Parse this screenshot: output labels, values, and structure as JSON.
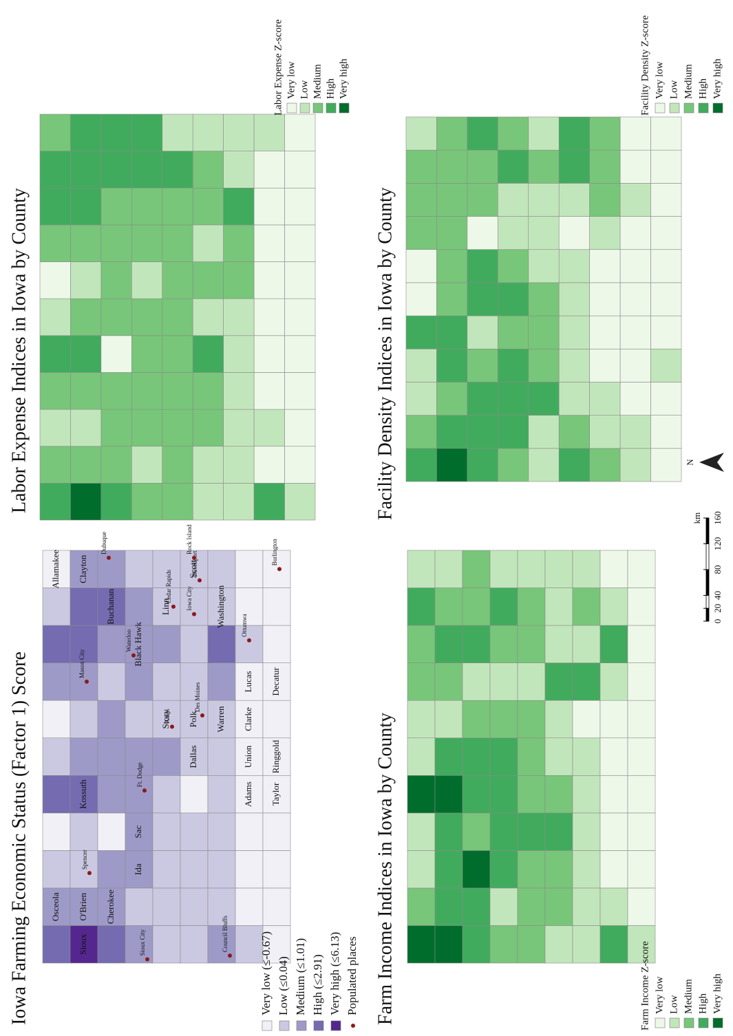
{
  "panels": [
    {
      "title": "Iowa Farming Economic Status (Factor 1) Score",
      "legend": [
        "Very low (≤-0.67)",
        "Low (≤0.04)",
        "Medium (≤1.01)",
        "High (≤2.91)",
        "Very high (≤6.13)"
      ],
      "places_legend": "Populated places",
      "palette": [
        "#f2f0f7",
        "#cbc9e2",
        "#9e9ac8",
        "#756bb1",
        "#54278f"
      ],
      "county_labels": [
        "Osceola",
        "O'Brien",
        "Sioux",
        "Cherokee",
        "Ida",
        "Sac",
        "Kossuth",
        "Allamakee",
        "Clayton",
        "Buchanan",
        "Black Hawk",
        "Linn",
        "Scott",
        "Washington",
        "Story",
        "Polk",
        "Dallas",
        "Warren",
        "Clarke",
        "Lucas",
        "Decatur",
        "Union",
        "Ringgold",
        "Adams",
        "Taylor"
      ],
      "places": [
        "Spencer",
        "Mason City",
        "Waterloo",
        "Ft. Dodge",
        "Ames",
        "Des Moines",
        "Cedar Rapids",
        "Iowa City",
        "Davenport",
        "Rock Island",
        "Dubuque",
        "Sioux City",
        "Council Bluffs",
        "Ottumwa",
        "Burlington"
      ],
      "classes": [
        [
          3,
          2,
          1,
          0,
          3,
          1,
          0,
          2,
          3,
          1,
          0
        ],
        [
          4,
          2,
          1,
          1,
          3,
          2,
          1,
          2,
          3,
          3,
          2
        ],
        [
          3,
          2,
          2,
          0,
          2,
          2,
          2,
          1,
          2,
          3,
          2
        ],
        [
          2,
          1,
          2,
          2,
          2,
          2,
          1,
          2,
          2,
          2,
          1
        ],
        [
          1,
          1,
          1,
          1,
          1,
          2,
          1,
          1,
          2,
          1,
          1
        ],
        [
          1,
          1,
          1,
          1,
          0,
          1,
          1,
          1,
          1,
          1,
          1
        ],
        [
          2,
          1,
          1,
          1,
          1,
          1,
          1,
          2,
          3,
          1,
          1
        ],
        [
          1,
          0,
          0,
          0,
          0,
          0,
          0,
          0,
          1,
          0,
          0
        ],
        [
          0,
          0,
          0,
          0,
          0,
          0,
          0,
          0,
          0,
          0,
          0
        ]
      ]
    },
    {
      "title": "Labor Expense Indices in Iowa by County",
      "legend_title": "Labor Expense Z-score",
      "legend": [
        "Very low",
        "Low",
        "Medium",
        "High",
        "Very high"
      ],
      "palette": [
        "#edf8e9",
        "#c2e6bb",
        "#78c679",
        "#41ab5d",
        "#006d2c"
      ],
      "classes": [
        [
          3,
          2,
          1,
          2,
          3,
          1,
          0,
          2,
          3,
          3,
          2
        ],
        [
          4,
          2,
          1,
          2,
          3,
          2,
          1,
          2,
          3,
          3,
          3
        ],
        [
          3,
          2,
          2,
          2,
          0,
          2,
          2,
          2,
          2,
          3,
          3
        ],
        [
          2,
          1,
          2,
          2,
          2,
          2,
          1,
          2,
          2,
          3,
          3
        ],
        [
          2,
          2,
          2,
          2,
          2,
          2,
          2,
          2,
          2,
          3,
          1
        ],
        [
          1,
          1,
          2,
          2,
          3,
          1,
          2,
          1,
          2,
          2,
          1
        ],
        [
          1,
          1,
          1,
          1,
          1,
          1,
          2,
          2,
          3,
          1,
          1
        ],
        [
          3,
          0,
          1,
          0,
          0,
          0,
          0,
          0,
          0,
          0,
          1
        ],
        [
          1,
          0,
          0,
          0,
          0,
          0,
          0,
          0,
          0,
          0,
          0
        ]
      ]
    },
    {
      "title": "Farm Income Indices in Iowa by County",
      "legend_title": "Farm Income Z-score",
      "legend": [
        "Very low",
        "Low",
        "Medium",
        "High",
        "Very high"
      ],
      "palette": [
        "#edf8e9",
        "#c2e6bb",
        "#78c679",
        "#41ab5d",
        "#006d2c"
      ],
      "classes": [
        [
          4,
          2,
          1,
          1,
          4,
          1,
          1,
          2,
          2,
          3,
          1
        ],
        [
          4,
          3,
          3,
          3,
          4,
          3,
          1,
          2,
          3,
          2,
          1
        ],
        [
          3,
          3,
          4,
          2,
          3,
          3,
          2,
          1,
          3,
          2,
          2
        ],
        [
          2,
          1,
          3,
          3,
          3,
          3,
          2,
          1,
          2,
          3,
          1
        ],
        [
          2,
          2,
          2,
          3,
          2,
          2,
          2,
          1,
          2,
          2,
          1
        ],
        [
          1,
          2,
          2,
          3,
          2,
          1,
          1,
          3,
          1,
          1,
          1
        ],
        [
          1,
          1,
          1,
          1,
          1,
          1,
          0,
          3,
          1,
          2,
          1
        ],
        [
          3,
          1,
          0,
          0,
          0,
          0,
          0,
          1,
          3,
          1,
          0
        ],
        [
          1,
          0,
          0,
          0,
          0,
          0,
          0,
          0,
          0,
          0,
          0
        ]
      ]
    },
    {
      "title": "Facility Density Indices in Iowa by County",
      "legend_title": "Facility Density Z-score",
      "legend": [
        "Very low",
        "Low",
        "Medium",
        "High",
        "Very high"
      ],
      "palette": [
        "#edf8e9",
        "#c2e6bb",
        "#78c679",
        "#41ab5d",
        "#006d2c"
      ],
      "classes": [
        [
          3,
          2,
          1,
          1,
          3,
          0,
          0,
          2,
          2,
          2,
          1
        ],
        [
          4,
          3,
          2,
          3,
          3,
          2,
          2,
          2,
          2,
          2,
          2
        ],
        [
          3,
          3,
          3,
          2,
          1,
          3,
          3,
          0,
          2,
          2,
          3
        ],
        [
          2,
          3,
          3,
          3,
          2,
          3,
          2,
          1,
          1,
          3,
          2
        ],
        [
          1,
          1,
          3,
          2,
          2,
          2,
          1,
          1,
          1,
          2,
          1
        ],
        [
          3,
          2,
          1,
          1,
          1,
          1,
          1,
          0,
          1,
          3,
          3
        ],
        [
          2,
          1,
          1,
          0,
          0,
          0,
          0,
          1,
          2,
          2,
          2
        ],
        [
          1,
          1,
          0,
          0,
          0,
          0,
          0,
          0,
          1,
          0,
          0
        ],
        [
          0,
          0,
          0,
          1,
          0,
          0,
          0,
          0,
          0,
          0,
          0
        ]
      ]
    }
  ],
  "scale_bar": {
    "unit": "km",
    "ticks": [
      0,
      20,
      40,
      80,
      120,
      160
    ]
  },
  "north": "N"
}
